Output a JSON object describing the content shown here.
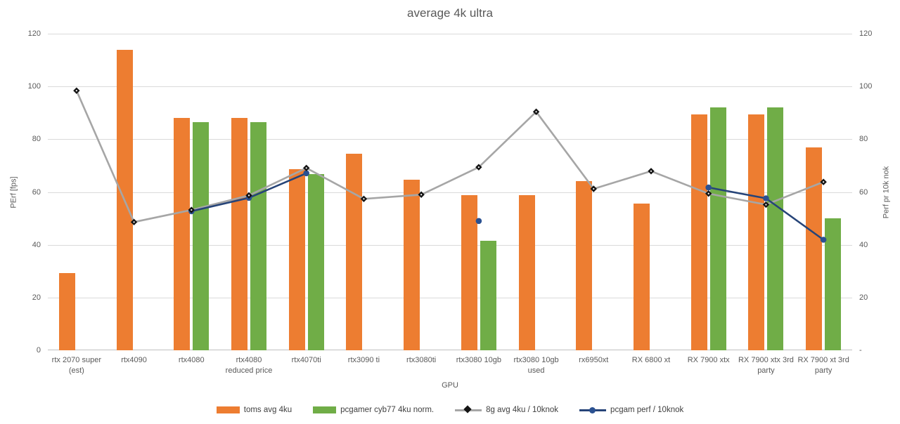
{
  "title": "average 4k ultra",
  "axes": {
    "left": {
      "title": "PErf [fps]",
      "tick_labels": [
        "120",
        "100",
        "80",
        "60",
        "40",
        "20",
        "0"
      ]
    },
    "right": {
      "title": "Perf pr 10k nok",
      "tick_labels": [
        "120",
        "100",
        "80",
        "60",
        "40",
        "20",
        "-"
      ]
    },
    "x": {
      "title": "GPU"
    },
    "tick_values": [
      120,
      100,
      80,
      60,
      40,
      20,
      0
    ]
  },
  "colors": {
    "orange": "#ED7D31",
    "green": "#70AD47",
    "gray_line": "#A6A6A6",
    "diamond_marker": "#141414",
    "blue_line": "#264478",
    "blue_marker": "#2B5191",
    "grid": "#DADADA",
    "axis_line": "#C0C0C0",
    "text": "#595959"
  },
  "legend": [
    {
      "label": "toms avg 4ku",
      "marker": "bar",
      "color": "#ED7D31"
    },
    {
      "label": "pcgamer cyb77 4ku norm.",
      "marker": "line-diamond",
      "color": "#A6A6A6",
      "marker_color": "#141414",
      "swatch_color": "#70AD47"
    },
    {
      "label": "8g avg 4ku / 10knok",
      "marker": "line-diamond",
      "color": "#A6A6A6",
      "marker_color": "#141414"
    },
    {
      "label": "pcgam perf / 10knok",
      "marker": "line-circle",
      "color": "#264478",
      "marker_color": "#2B5191"
    }
  ],
  "chart_data": {
    "type": "bar+line combo",
    "ylim": [
      0,
      120
    ],
    "grid": true,
    "legend_position": "bottom",
    "categories": [
      "rtx 2070 super (est)",
      "rtx4090",
      "rtx4080",
      "rtx4080 reduced price",
      "rtx4070ti",
      "rtx3090 ti",
      "rtx3080ti",
      "rtx3080 10gb",
      "rtx3080 10gb used",
      "rx6950xt",
      "RX 6800 xt",
      "RX 7900 xtx",
      "RX 7900 xtx 3rd party",
      "RX 7900 xt 3rd party"
    ],
    "category_label_lines": [
      [
        "rtx 2070 super",
        "(est)"
      ],
      [
        "rtx4090"
      ],
      [
        "rtx4080"
      ],
      [
        "rtx4080",
        "reduced price"
      ],
      [
        "rtx4070ti"
      ],
      [
        "rtx3090 ti"
      ],
      [
        "rtx3080ti"
      ],
      [
        "rtx3080 10gb"
      ],
      [
        "rtx3080 10gb",
        "used"
      ],
      [
        "rx6950xt"
      ],
      [
        "RX 6800 xt"
      ],
      [
        "RX 7900 xtx"
      ],
      [
        "RX 7900 xtx 3rd",
        "party"
      ],
      [
        "RX 7900 xt 3rd",
        "party"
      ]
    ],
    "series": [
      {
        "name": "toms avg 4ku",
        "type": "bar",
        "color": "#ED7D31",
        "values": [
          29.3,
          114,
          88,
          88,
          68.7,
          74.5,
          64.8,
          58.7,
          58.7,
          64.1,
          55.5,
          89.4,
          89.4,
          76.8
        ]
      },
      {
        "name": "pcgamer cyb77 4ku norm.",
        "type": "bar",
        "color": "#70AD47",
        "values": [
          null,
          null,
          86.6,
          86.6,
          66.8,
          null,
          null,
          41.5,
          null,
          null,
          null,
          92.2,
          92.2,
          50.1
        ]
      },
      {
        "name": "8g avg 4ku / 10knok",
        "type": "line",
        "color": "#A6A6A6",
        "marker": "diamond",
        "marker_color": "#141414",
        "values": [
          98.4,
          48.6,
          53.2,
          58.7,
          69.1,
          57.4,
          59.0,
          69.4,
          90.4,
          61.2,
          67.9,
          59.4,
          55.2,
          63.8
        ]
      },
      {
        "name": "pcgam perf / 10knok",
        "type": "line",
        "color": "#264478",
        "marker": "circle",
        "marker_color": "#2B5191",
        "values": [
          null,
          null,
          52.7,
          57.8,
          67.1,
          null,
          null,
          49.0,
          null,
          null,
          null,
          61.7,
          57.6,
          41.9
        ]
      }
    ]
  }
}
